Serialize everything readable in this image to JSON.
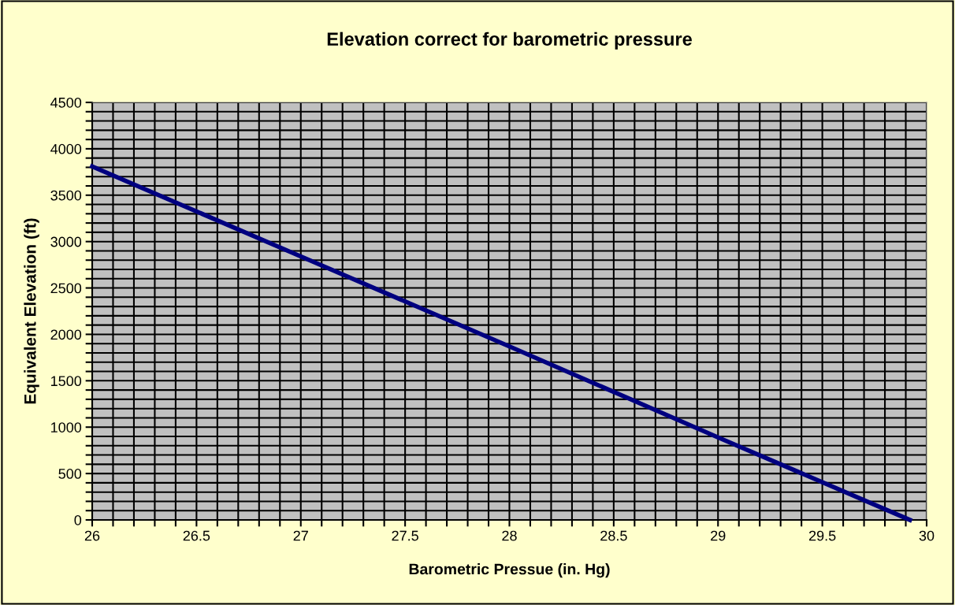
{
  "chart_data": {
    "type": "line",
    "title": "Elevation correct for barometric pressure",
    "xlabel": "Barometric Pressue (in. Hg)",
    "ylabel": "Equivalent Elevation (ft)",
    "x": [
      26,
      27,
      28,
      29,
      29.92
    ],
    "series": [
      {
        "color": "#000080",
        "values": [
          3810,
          2840,
          1870,
          890,
          0
        ]
      }
    ],
    "xlim": [
      26,
      30
    ],
    "ylim": [
      0,
      4500
    ],
    "xticks": [
      26,
      {
        "value": 26.1,
        "label": null
      },
      {
        "value": 26.2,
        "label": null
      },
      {
        "value": 26.3,
        "label": null
      },
      {
        "value": 26.4,
        "label": null
      },
      26.5,
      {
        "value": 26.6,
        "label": null
      },
      {
        "value": 26.7,
        "label": null
      },
      {
        "value": 26.8,
        "label": null
      },
      {
        "value": 26.9,
        "label": null
      },
      27,
      {
        "value": 27.1,
        "label": null
      },
      {
        "value": 27.2,
        "label": null
      },
      {
        "value": 27.3,
        "label": null
      },
      {
        "value": 27.4,
        "label": null
      },
      27.5,
      {
        "value": 27.6,
        "label": null
      },
      {
        "value": 27.7,
        "label": null
      },
      {
        "value": 27.8,
        "label": null
      },
      {
        "value": 27.9,
        "label": null
      },
      28,
      {
        "value": 28.1,
        "label": null
      },
      {
        "value": 28.2,
        "label": null
      },
      {
        "value": 28.3,
        "label": null
      },
      {
        "value": 28.4,
        "label": null
      },
      28.5,
      {
        "value": 28.6,
        "label": null
      },
      {
        "value": 28.7,
        "label": null
      },
      {
        "value": 28.8,
        "label": null
      },
      {
        "value": 28.9,
        "label": null
      },
      29,
      {
        "value": 29.1,
        "label": null
      },
      {
        "value": 29.2,
        "label": null
      },
      {
        "value": 29.3,
        "label": null
      },
      {
        "value": 29.4,
        "label": null
      },
      29.5,
      {
        "value": 29.6,
        "label": null
      },
      {
        "value": 29.7,
        "label": null
      },
      {
        "value": 29.8,
        "label": null
      },
      {
        "value": 29.9,
        "label": null
      },
      30
    ],
    "yticks": [
      0,
      {
        "value": 100,
        "label": null
      },
      {
        "value": 200,
        "label": null
      },
      {
        "value": 300,
        "label": null
      },
      {
        "value": 400,
        "label": null
      },
      500,
      {
        "value": 600,
        "label": null
      },
      {
        "value": 700,
        "label": null
      },
      {
        "value": 800,
        "label": null
      },
      {
        "value": 900,
        "label": null
      },
      1000,
      {
        "value": 1100,
        "label": null
      },
      {
        "value": 1200,
        "label": null
      },
      {
        "value": 1300,
        "label": null
      },
      {
        "value": 1400,
        "label": null
      },
      1500,
      {
        "value": 1600,
        "label": null
      },
      {
        "value": 1700,
        "label": null
      },
      {
        "value": 1800,
        "label": null
      },
      {
        "value": 1900,
        "label": null
      },
      2000,
      {
        "value": 2100,
        "label": null
      },
      {
        "value": 2200,
        "label": null
      },
      {
        "value": 2300,
        "label": null
      },
      {
        "value": 2400,
        "label": null
      },
      2500,
      {
        "value": 2600,
        "label": null
      },
      {
        "value": 2700,
        "label": null
      },
      {
        "value": 2800,
        "label": null
      },
      {
        "value": 2900,
        "label": null
      },
      3000,
      {
        "value": 3100,
        "label": null
      },
      {
        "value": 3200,
        "label": null
      },
      {
        "value": 3300,
        "label": null
      },
      {
        "value": 3400,
        "label": null
      },
      3500,
      {
        "value": 3600,
        "label": null
      },
      {
        "value": 3700,
        "label": null
      },
      {
        "value": 3800,
        "label": null
      },
      {
        "value": 3900,
        "label": null
      },
      4000,
      {
        "value": 4100,
        "label": null
      },
      {
        "value": 4200,
        "label": null
      },
      {
        "value": 4300,
        "label": null
      },
      {
        "value": 4400,
        "label": null
      },
      4500
    ],
    "grid": true,
    "legend": false,
    "marker": "none",
    "line_style": "solid"
  }
}
